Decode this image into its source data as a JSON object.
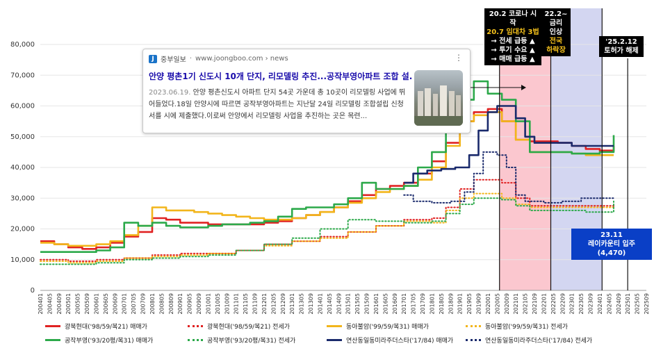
{
  "chart_data": {
    "type": "line",
    "ylim": [
      0,
      80000
    ],
    "yticks": [
      "0",
      "10,000",
      "20,000",
      "30,000",
      "40,000",
      "50,000",
      "60,000",
      "70,000",
      "80,000"
    ],
    "x_labels": [
      "200401",
      "200405",
      "200409",
      "200501",
      "200505",
      "200509",
      "200601",
      "200605",
      "200609",
      "200701",
      "200705",
      "200709",
      "200801",
      "200805",
      "200809",
      "200901",
      "200905",
      "200909",
      "201001",
      "201005",
      "201009",
      "201101",
      "201105",
      "201109",
      "201201",
      "201205",
      "201209",
      "201301",
      "201305",
      "201309",
      "201401",
      "201405",
      "201409",
      "201501",
      "201505",
      "201509",
      "201601",
      "201605",
      "201609",
      "201701",
      "201705",
      "201709",
      "201801",
      "201805",
      "201809",
      "201901",
      "201905",
      "201909",
      "202001",
      "202005",
      "202009",
      "202101",
      "202105",
      "202109",
      "202201",
      "202205",
      "202209",
      "202301",
      "202305",
      "202309",
      "202401",
      "202405",
      "202409",
      "202501",
      "202505",
      "202509"
    ],
    "series": [
      {
        "name": "광북현대('98/59/복21) 매매가",
        "color": "#e02222",
        "style": "solid",
        "points": [
          [
            0,
            16000
          ],
          [
            3,
            15000
          ],
          [
            6,
            14000
          ],
          [
            9,
            13500
          ],
          [
            12,
            14000
          ],
          [
            15,
            15500
          ],
          [
            18,
            17500
          ],
          [
            21,
            19000
          ],
          [
            24,
            23500
          ],
          [
            27,
            23000
          ],
          [
            30,
            22000
          ],
          [
            33,
            22000
          ],
          [
            36,
            21500
          ],
          [
            39,
            21500
          ],
          [
            42,
            21500
          ],
          [
            45,
            21500
          ],
          [
            48,
            22000
          ],
          [
            51,
            22500
          ],
          [
            54,
            23500
          ],
          [
            57,
            24500
          ],
          [
            60,
            25500
          ],
          [
            63,
            27000
          ],
          [
            66,
            29000
          ],
          [
            69,
            31000
          ],
          [
            72,
            33000
          ],
          [
            75,
            34000
          ],
          [
            78,
            35000
          ],
          [
            81,
            38000
          ],
          [
            84,
            42000
          ],
          [
            87,
            48000
          ],
          [
            90,
            55000
          ],
          [
            93,
            58000
          ],
          [
            96,
            59000
          ],
          [
            99,
            55000
          ],
          [
            102,
            49000
          ],
          [
            105,
            48500
          ],
          [
            108,
            48500
          ],
          [
            111,
            48000
          ],
          [
            114,
            47000
          ],
          [
            117,
            46000
          ],
          [
            120,
            45500
          ],
          [
            123,
            47000
          ]
        ]
      },
      {
        "name": "광북현대('98/59/복21) 전세가",
        "color": "#e02222",
        "style": "dotted",
        "points": [
          [
            0,
            10000
          ],
          [
            6,
            9500
          ],
          [
            12,
            10000
          ],
          [
            18,
            10500
          ],
          [
            24,
            11500
          ],
          [
            30,
            12000
          ],
          [
            36,
            12000
          ],
          [
            42,
            13000
          ],
          [
            48,
            15000
          ],
          [
            54,
            16000
          ],
          [
            60,
            17500
          ],
          [
            66,
            19000
          ],
          [
            72,
            21000
          ],
          [
            78,
            23000
          ],
          [
            84,
            23500
          ],
          [
            87,
            27000
          ],
          [
            90,
            33000
          ],
          [
            93,
            36000
          ],
          [
            96,
            36000
          ],
          [
            99,
            35000
          ],
          [
            102,
            30000
          ],
          [
            105,
            27500
          ],
          [
            111,
            27500
          ],
          [
            117,
            27500
          ],
          [
            123,
            27000
          ]
        ]
      },
      {
        "name": "동아불암('99/59/복31) 매매가",
        "color": "#f2b51b",
        "style": "solid",
        "points": [
          [
            0,
            15500
          ],
          [
            3,
            15000
          ],
          [
            6,
            14500
          ],
          [
            9,
            14500
          ],
          [
            12,
            15000
          ],
          [
            15,
            16000
          ],
          [
            18,
            18000
          ],
          [
            21,
            21000
          ],
          [
            24,
            27000
          ],
          [
            27,
            26000
          ],
          [
            30,
            26000
          ],
          [
            33,
            25500
          ],
          [
            36,
            25000
          ],
          [
            39,
            24500
          ],
          [
            42,
            24000
          ],
          [
            45,
            23500
          ],
          [
            48,
            23000
          ],
          [
            51,
            23000
          ],
          [
            54,
            23500
          ],
          [
            57,
            24500
          ],
          [
            60,
            25500
          ],
          [
            63,
            27000
          ],
          [
            66,
            28500
          ],
          [
            69,
            30000
          ],
          [
            72,
            32000
          ],
          [
            75,
            33000
          ],
          [
            78,
            34000
          ],
          [
            81,
            36000
          ],
          [
            84,
            40000
          ],
          [
            87,
            47000
          ],
          [
            90,
            55000
          ],
          [
            93,
            57000
          ],
          [
            96,
            58000
          ],
          [
            99,
            55000
          ],
          [
            102,
            49000
          ],
          [
            105,
            45000
          ],
          [
            108,
            45000
          ],
          [
            111,
            45000
          ],
          [
            114,
            44500
          ],
          [
            117,
            44000
          ],
          [
            120,
            44000
          ],
          [
            123,
            44000
          ]
        ]
      },
      {
        "name": "동아불암('99/59/복31) 전세가",
        "color": "#f2b51b",
        "style": "dotted",
        "points": [
          [
            0,
            9500
          ],
          [
            6,
            9000
          ],
          [
            12,
            9500
          ],
          [
            18,
            10500
          ],
          [
            24,
            11000
          ],
          [
            30,
            11500
          ],
          [
            36,
            12000
          ],
          [
            42,
            13000
          ],
          [
            48,
            14500
          ],
          [
            54,
            16000
          ],
          [
            60,
            17000
          ],
          [
            66,
            19000
          ],
          [
            72,
            21000
          ],
          [
            78,
            22500
          ],
          [
            84,
            22000
          ],
          [
            87,
            26000
          ],
          [
            90,
            30000
          ],
          [
            93,
            31500
          ],
          [
            96,
            31500
          ],
          [
            99,
            30000
          ],
          [
            102,
            28000
          ],
          [
            105,
            27000
          ],
          [
            111,
            27000
          ],
          [
            117,
            27000
          ],
          [
            123,
            27000
          ]
        ]
      },
      {
        "name": "공작부영('93/20평/복31) 매매가",
        "color": "#2ca94a",
        "style": "solid",
        "points": [
          [
            0,
            12500
          ],
          [
            3,
            12500
          ],
          [
            6,
            12500
          ],
          [
            9,
            12500
          ],
          [
            12,
            13000
          ],
          [
            15,
            14000
          ],
          [
            18,
            22000
          ],
          [
            21,
            21000
          ],
          [
            24,
            22000
          ],
          [
            27,
            21000
          ],
          [
            30,
            20500
          ],
          [
            33,
            20500
          ],
          [
            36,
            21000
          ],
          [
            39,
            21500
          ],
          [
            42,
            21500
          ],
          [
            45,
            22000
          ],
          [
            48,
            22500
          ],
          [
            51,
            24000
          ],
          [
            54,
            26500
          ],
          [
            57,
            27000
          ],
          [
            60,
            27000
          ],
          [
            63,
            28000
          ],
          [
            66,
            30000
          ],
          [
            69,
            35000
          ],
          [
            72,
            33000
          ],
          [
            75,
            33000
          ],
          [
            78,
            34000
          ],
          [
            81,
            40000
          ],
          [
            84,
            45000
          ],
          [
            87,
            55000
          ],
          [
            90,
            62000
          ],
          [
            93,
            68000
          ],
          [
            96,
            64000
          ],
          [
            99,
            62000
          ],
          [
            102,
            55000
          ],
          [
            105,
            45000
          ],
          [
            108,
            45000
          ],
          [
            111,
            45000
          ],
          [
            114,
            44500
          ],
          [
            117,
            44500
          ],
          [
            120,
            45000
          ],
          [
            123,
            50500
          ]
        ]
      },
      {
        "name": "공작부영('93/20평/복31) 전세가",
        "color": "#2ca94a",
        "style": "dotted",
        "points": [
          [
            0,
            8500
          ],
          [
            6,
            8500
          ],
          [
            12,
            9000
          ],
          [
            18,
            10000
          ],
          [
            24,
            10500
          ],
          [
            30,
            11000
          ],
          [
            36,
            11500
          ],
          [
            42,
            13000
          ],
          [
            48,
            15000
          ],
          [
            54,
            17000
          ],
          [
            60,
            20000
          ],
          [
            66,
            23000
          ],
          [
            72,
            22500
          ],
          [
            78,
            22000
          ],
          [
            84,
            22500
          ],
          [
            87,
            25000
          ],
          [
            90,
            28000
          ],
          [
            93,
            30000
          ],
          [
            96,
            30000
          ],
          [
            99,
            29500
          ],
          [
            102,
            27500
          ],
          [
            105,
            26000
          ],
          [
            111,
            26000
          ],
          [
            117,
            25500
          ],
          [
            123,
            29000
          ]
        ]
      },
      {
        "name": "연산동일동미라주더스타('17/84) 매매가",
        "color": "#1a2a6c",
        "style": "solid",
        "points": [
          [
            78,
            35000
          ],
          [
            80,
            38000
          ],
          [
            83,
            39000
          ],
          [
            86,
            39500
          ],
          [
            89,
            40000
          ],
          [
            92,
            44000
          ],
          [
            94,
            52000
          ],
          [
            96,
            58000
          ],
          [
            98,
            60000
          ],
          [
            100,
            60000
          ],
          [
            102,
            56000
          ],
          [
            104,
            50000
          ],
          [
            106,
            48000
          ],
          [
            110,
            48000
          ],
          [
            114,
            47000
          ],
          [
            118,
            47000
          ],
          [
            123,
            47000
          ]
        ]
      },
      {
        "name": "연산동일동미라주더스타('17/84) 전세가",
        "color": "#1a2a6c",
        "style": "dotted",
        "points": [
          [
            78,
            31000
          ],
          [
            80,
            29000
          ],
          [
            84,
            28500
          ],
          [
            88,
            29000
          ],
          [
            91,
            32000
          ],
          [
            93,
            38000
          ],
          [
            95,
            45000
          ],
          [
            98,
            44000
          ],
          [
            100,
            40000
          ],
          [
            102,
            31000
          ],
          [
            104,
            29000
          ],
          [
            108,
            28500
          ],
          [
            112,
            29000
          ],
          [
            116,
            30000
          ],
          [
            120,
            30000
          ],
          [
            123,
            30000
          ]
        ]
      }
    ]
  },
  "annotations": {
    "covid_line1": "20.2 코로나 시작",
    "covid_line2": "20.7 임대차 3법",
    "covid_line3": "→ 전세 급등 ▲",
    "covid_line4": "→ 투기 수요 ▲",
    "covid_line5": "→ 매매 급등 ▲",
    "rate_line1": "22.2~",
    "rate_line2": "금리",
    "rate_line3": "인상",
    "rate_line4": "전국",
    "rate_line5": "하락장",
    "lift_line1": "'25.2.12",
    "lift_line2": "토허가 해제",
    "move_line1": "23.11",
    "move_line2": "레이카운티 입주(4,470)"
  },
  "news_card": {
    "source": "중부일보",
    "url": "www.joongboo.com › news",
    "title": "안양 평촌1기 신도시 10개 단지, 리모델링 추진...공작부영아파트 조합 설...",
    "date": "2023.06.19.",
    "body": "안양 평촌신도시 아파트 단지 54곳 가운데 총 10곳이 리모델링 사업에 뛰어들었다.18일 안양시에 따르면 공작부영아파트는 지난달 24일 리모델링 조합설립 신청서를 시에 제출했다.이로써 안양에서 리모델링 사업을 추진하는 곳은 목련...",
    "logo": "J",
    "menu_icon": "more-vert-icon"
  },
  "legend": [
    "광북현대('98/59/복21) 매매가",
    "광북현대('98/59/복21) 전세가",
    "동아불암('99/59/복31) 매매가",
    "동아불암('99/59/복31) 전세가",
    "공작부영('93/20평/복31) 매매가",
    "공작부영('93/20평/복31) 전세가",
    "연산동일동미라주더스타('17/84) 매매가",
    "연산동일동미라주더스타('17/84) 전세가"
  ]
}
